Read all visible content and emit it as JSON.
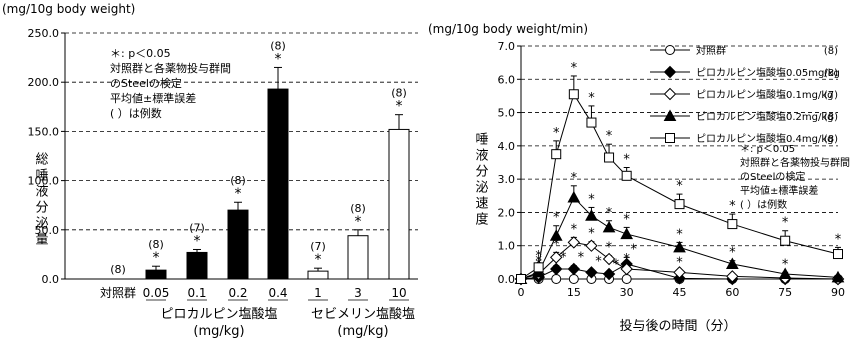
{
  "chart_data": [
    {
      "type": "bar",
      "unit_label": "(mg/10g body weight)",
      "ylabel": "総唾液分泌量",
      "ylim": [
        0,
        250
      ],
      "yticks": [
        "0.0",
        "50.0",
        "100.0",
        "150.0",
        "200.0",
        "250.0"
      ],
      "grid": "dashed horizontal",
      "categories": [
        "対照群",
        "0.05",
        "0.1",
        "0.2",
        "0.4",
        "1",
        "3",
        "10"
      ],
      "values": [
        0,
        9,
        27,
        70,
        193,
        8,
        44,
        152
      ],
      "errors": [
        0,
        4,
        3,
        8,
        22,
        3,
        6,
        15
      ],
      "bar_fill": [
        "none",
        "#000000",
        "#000000",
        "#000000",
        "#000000",
        "#ffffff",
        "#ffffff",
        "#ffffff"
      ],
      "n_labels": [
        "(8)",
        "(8)",
        "(7)",
        "(8)",
        "(8)",
        "(7)",
        "(8)",
        "(8)"
      ],
      "significant": [
        false,
        true,
        true,
        true,
        true,
        true,
        true,
        true
      ],
      "groups": [
        {
          "name": "ピロカルピン塩酸塩",
          "unit": "(mg/kg)"
        },
        {
          "name": "セビメリン塩酸塩",
          "unit": "(mg/kg)"
        }
      ],
      "annotation": [
        "＊: p＜0.05",
        "対照群と各薬物投与群間",
        "のSteelの検定",
        "平均値±標準誤差",
        "(  ）は例数"
      ]
    },
    {
      "type": "line",
      "unit_label": "(mg/10g body weight/min)",
      "ylabel": "唾液分泌速度",
      "xlabel": "投与後の時間（分）",
      "xlim": [
        0,
        90
      ],
      "ylim": [
        0,
        7
      ],
      "xticks": [
        "0",
        "15",
        "30",
        "45",
        "60",
        "75",
        "90"
      ],
      "yticks": [
        "0.0",
        "1.0",
        "2.0",
        "3.0",
        "4.0",
        "5.0",
        "6.0",
        "7.0"
      ],
      "grid": "dashed horizontal",
      "x": [
        0,
        5,
        10,
        15,
        20,
        25,
        30,
        45,
        60,
        75,
        90
      ],
      "series": [
        {
          "name": "対照群",
          "n": "(8)",
          "marker": "circle-open",
          "values": [
            0,
            0,
            0,
            0,
            0,
            0,
            0,
            0,
            0,
            0,
            0
          ],
          "errors": [
            0,
            0,
            0,
            0,
            0,
            0,
            0,
            0,
            0,
            0,
            0
          ]
        },
        {
          "name": "ピロカルピン塩酸塩0.05mg/kg",
          "n": "(8)",
          "marker": "diamond-filled",
          "values": [
            0,
            0.05,
            0.3,
            0.3,
            0.2,
            0.15,
            0.45,
            0.02,
            0.0,
            0.0,
            0.0
          ],
          "errors": [
            0,
            0.03,
            0.1,
            0.1,
            0.08,
            0.05,
            0.2,
            0.01,
            0,
            0,
            0
          ]
        },
        {
          "name": "ピロカルピン塩酸塩0.1mg/kg",
          "n": "(7)",
          "marker": "diamond-open",
          "values": [
            0,
            0.15,
            0.65,
            1.1,
            1.0,
            0.6,
            0.3,
            0.2,
            0.08,
            0.03,
            0.0
          ],
          "errors": [
            0,
            0.05,
            0.15,
            0.15,
            0.12,
            0.1,
            0.06,
            0.05,
            0.03,
            0.02,
            0
          ]
        },
        {
          "name": "ピロカルピン塩酸塩0.2mg/kg",
          "n": "(8)",
          "marker": "triangle-filled",
          "values": [
            0,
            0.2,
            1.3,
            2.45,
            1.9,
            1.55,
            1.35,
            0.95,
            0.45,
            0.15,
            0.05
          ],
          "errors": [
            0,
            0.1,
            0.3,
            0.35,
            0.25,
            0.2,
            0.2,
            0.15,
            0.1,
            0.05,
            0.02
          ]
        },
        {
          "name": "ピロカルピン塩酸塩0.4mg/kg",
          "n": "(8)",
          "marker": "square-open",
          "values": [
            0,
            0.35,
            3.75,
            5.55,
            4.7,
            3.65,
            3.1,
            2.25,
            1.65,
            1.15,
            0.75
          ],
          "errors": [
            0,
            0.1,
            0.4,
            0.55,
            0.5,
            0.4,
            0.25,
            0.3,
            0.3,
            0.3,
            0.2
          ]
        }
      ],
      "annotation": [
        "＊: p＜0.05",
        "対照群と各薬物投与群間",
        "のSteelの検定",
        "平均値±標準誤差",
        "(  ）は例数"
      ]
    }
  ]
}
